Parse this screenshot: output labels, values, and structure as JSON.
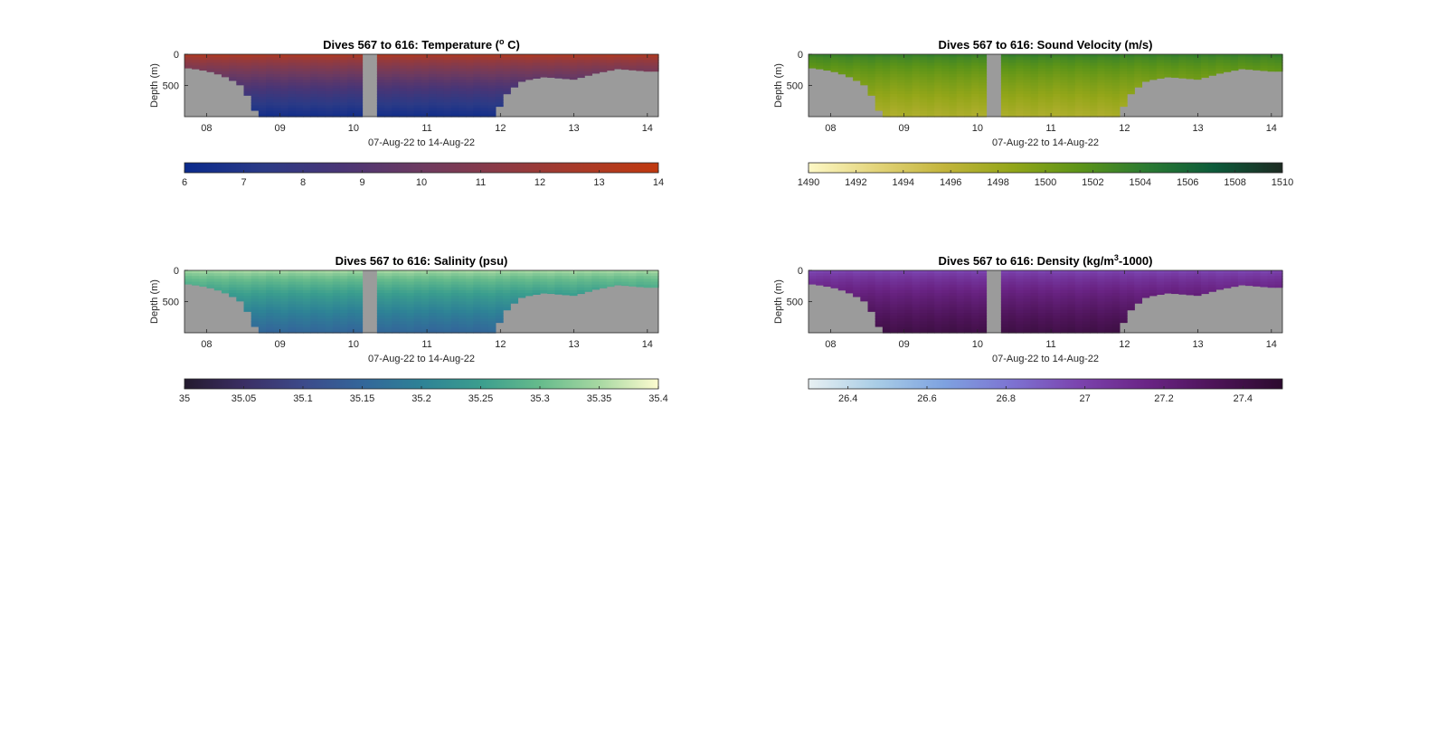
{
  "figure": {
    "panels": [
      {
        "title_main": "Dives 567 to 616: Temperature (",
        "title_sup": "o",
        "title_end": " C)",
        "ylabel": "Depth (m)",
        "xlabel": "07-Aug-22 to 14-Aug-22",
        "colorbar_ticks": [
          "6",
          "7",
          "8",
          "9",
          "10",
          "11",
          "12",
          "13",
          "14"
        ]
      },
      {
        "title_main": "Dives 567 to 616: Sound Velocity (m/s)",
        "title_sup": "",
        "title_end": "",
        "ylabel": "Depth (m)",
        "xlabel": "07-Aug-22 to 14-Aug-22",
        "colorbar_ticks": [
          "1490",
          "1492",
          "1494",
          "1496",
          "1498",
          "1500",
          "1502",
          "1504",
          "1506",
          "1508",
          "1510"
        ]
      },
      {
        "title_main": "Dives 567 to 616: Salinity (psu)",
        "title_sup": "",
        "title_end": "",
        "ylabel": "Depth (m)",
        "xlabel": "07-Aug-22 to 14-Aug-22",
        "colorbar_ticks": [
          "35",
          "35.05",
          "35.1",
          "35.15",
          "35.2",
          "35.25",
          "35.3",
          "35.35",
          "35.4"
        ]
      },
      {
        "title_main": "Dives 567 to 616: Density (kg/m",
        "title_sup": "3",
        "title_end": "-1000)",
        "ylabel": "Depth (m)",
        "xlabel": "07-Aug-22 to 14-Aug-22",
        "colorbar_ticks": [
          "26.4",
          "26.6",
          "26.8",
          "27",
          "27.2",
          "27.4"
        ]
      }
    ]
  },
  "chart_data": [
    {
      "type": "heatmap",
      "title": "Dives 567 to 616: Temperature (o C)",
      "variable": "Temperature",
      "x_ticks": [
        "08",
        "09",
        "10",
        "11",
        "12",
        "13",
        "14"
      ],
      "x_tick_values": [
        8,
        9,
        10,
        11,
        12,
        13,
        14
      ],
      "xlim": [
        7.7,
        14.15
      ],
      "y_ticks": [
        0,
        500
      ],
      "ylim": [
        1000,
        0
      ],
      "xlabel": "07-Aug-22 to 14-Aug-22",
      "ylabel": "Depth (m)",
      "clim": [
        6,
        14
      ],
      "colorbar_ticks": [
        6,
        7,
        8,
        9,
        10,
        11,
        12,
        13,
        14
      ],
      "colormap": [
        "#0a2a8c",
        "#2b3a86",
        "#4a3575",
        "#6d3a60",
        "#8c3a45",
        "#a93a28",
        "#c0390f"
      ],
      "surface_value": 13.3,
      "bottom_value": 6.4,
      "max_depth_profile": {
        "x": [
          7.7,
          7.9,
          8.1,
          8.3,
          8.5,
          8.7,
          9.0,
          10.0,
          11.0,
          11.9,
          12.1,
          12.3,
          12.6,
          13.0,
          13.3,
          13.6,
          14.0,
          14.15
        ],
        "depth": [
          210,
          240,
          290,
          380,
          520,
          1000,
          1000,
          1000,
          1000,
          1000,
          600,
          420,
          360,
          400,
          300,
          230,
          270,
          270
        ]
      },
      "gap": [
        10.15,
        10.3
      ],
      "nan_color": "#9b9b9b"
    },
    {
      "type": "heatmap",
      "title": "Dives 567 to 616: Sound Velocity (m/s)",
      "variable": "Sound Velocity",
      "x_ticks": [
        "08",
        "09",
        "10",
        "11",
        "12",
        "13",
        "14"
      ],
      "x_tick_values": [
        8,
        9,
        10,
        11,
        12,
        13,
        14
      ],
      "xlim": [
        7.7,
        14.15
      ],
      "y_ticks": [
        0,
        500
      ],
      "ylim": [
        1000,
        0
      ],
      "xlabel": "07-Aug-22 to 14-Aug-22",
      "ylabel": "Depth (m)",
      "clim": [
        1490,
        1510
      ],
      "colorbar_ticks": [
        1490,
        1492,
        1494,
        1496,
        1498,
        1500,
        1502,
        1504,
        1506,
        1508,
        1510
      ],
      "colormap": [
        "#fdf8c6",
        "#e3d47a",
        "#c3b53c",
        "#93a619",
        "#5d9418",
        "#2a7a32",
        "#0c5a3a",
        "#1d2a22"
      ],
      "surface_value": 1504,
      "bottom_value": 1497,
      "max_depth_profile": {
        "x": [
          7.7,
          7.9,
          8.1,
          8.3,
          8.5,
          8.7,
          9.0,
          10.0,
          11.0,
          11.9,
          12.1,
          12.3,
          12.6,
          13.0,
          13.3,
          13.6,
          14.0,
          14.15
        ],
        "depth": [
          210,
          240,
          290,
          380,
          520,
          1000,
          1000,
          1000,
          1000,
          1000,
          600,
          420,
          360,
          400,
          300,
          230,
          270,
          270
        ]
      },
      "gap": [
        10.15,
        10.3
      ],
      "nan_color": "#9b9b9b"
    },
    {
      "type": "heatmap",
      "title": "Dives 567 to 616: Salinity (psu)",
      "variable": "Salinity",
      "x_ticks": [
        "08",
        "09",
        "10",
        "11",
        "12",
        "13",
        "14"
      ],
      "x_tick_values": [
        8,
        9,
        10,
        11,
        12,
        13,
        14
      ],
      "xlim": [
        7.7,
        14.15
      ],
      "y_ticks": [
        0,
        500
      ],
      "ylim": [
        1000,
        0
      ],
      "xlabel": "07-Aug-22 to 14-Aug-22",
      "ylabel": "Depth (m)",
      "clim": [
        35,
        35.4
      ],
      "colorbar_ticks": [
        35,
        35.05,
        35.1,
        35.15,
        35.2,
        35.25,
        35.3,
        35.35,
        35.4
      ],
      "colormap": [
        "#231a2e",
        "#3b2e64",
        "#3c4a8a",
        "#33669a",
        "#2e8296",
        "#3b9e8e",
        "#66bb8c",
        "#a7d8a2",
        "#fdfcd0"
      ],
      "surface_value": 35.36,
      "bottom_value": 35.15,
      "max_depth_profile": {
        "x": [
          7.7,
          7.9,
          8.1,
          8.3,
          8.5,
          8.7,
          9.0,
          10.0,
          11.0,
          11.9,
          12.1,
          12.3,
          12.6,
          13.0,
          13.3,
          13.6,
          14.0,
          14.15
        ],
        "depth": [
          210,
          240,
          290,
          380,
          520,
          1000,
          1000,
          1000,
          1000,
          1000,
          600,
          420,
          360,
          400,
          300,
          230,
          270,
          270
        ]
      },
      "gap": [
        10.15,
        10.3
      ],
      "nan_color": "#9b9b9b"
    },
    {
      "type": "heatmap",
      "title": "Dives 567 to 616: Density (kg/m3-1000)",
      "variable": "Density",
      "x_ticks": [
        "08",
        "09",
        "10",
        "11",
        "12",
        "13",
        "14"
      ],
      "x_tick_values": [
        8,
        9,
        10,
        11,
        12,
        13,
        14
      ],
      "xlim": [
        7.7,
        14.15
      ],
      "y_ticks": [
        0,
        500
      ],
      "ylim": [
        1000,
        0
      ],
      "xlabel": "07-Aug-22 to 14-Aug-22",
      "ylabel": "Depth (m)",
      "clim": [
        26.3,
        27.5
      ],
      "colorbar_ticks": [
        26.4,
        26.6,
        26.8,
        27,
        27.2,
        27.4
      ],
      "colormap": [
        "#e8f0f2",
        "#a9cde6",
        "#7ea2e0",
        "#7d73d2",
        "#7b43ae",
        "#6a2485",
        "#4d1458",
        "#2c0b2e"
      ],
      "surface_value": 26.95,
      "bottom_value": 27.4,
      "max_depth_profile": {
        "x": [
          7.7,
          7.9,
          8.1,
          8.3,
          8.5,
          8.7,
          9.0,
          10.0,
          11.0,
          11.9,
          12.1,
          12.3,
          12.6,
          13.0,
          13.3,
          13.6,
          14.0,
          14.15
        ],
        "depth": [
          210,
          240,
          290,
          380,
          520,
          1000,
          1000,
          1000,
          1000,
          1000,
          600,
          420,
          360,
          400,
          300,
          230,
          270,
          270
        ]
      },
      "gap": [
        10.15,
        10.3
      ],
      "nan_color": "#9b9b9b"
    }
  ]
}
